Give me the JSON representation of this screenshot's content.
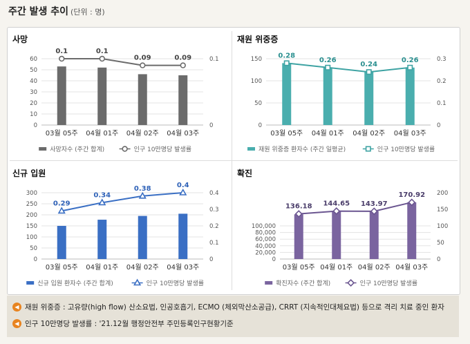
{
  "header": {
    "title": "주간 발생 추이",
    "unit": "(단위 : 명)"
  },
  "chart_data": [
    {
      "type": "bar",
      "title": "사망",
      "categories": [
        "03월 05주",
        "04월 01주",
        "04월 02주",
        "04월 03주"
      ],
      "ylim": [
        0,
        60
      ],
      "y_ticks": [
        "0",
        "10",
        "20",
        "30",
        "40",
        "50",
        "60"
      ],
      "y2lim": [
        0,
        0.1
      ],
      "y2_ticks": [
        "0",
        "0.1"
      ],
      "series": [
        {
          "name": "사망자수 (주간 합계)",
          "kind": "bar",
          "values": [
            53,
            52,
            46,
            45
          ],
          "color": "#6b6b6b"
        },
        {
          "name": "인구 10만명당 발생률",
          "kind": "line",
          "marker": "circle",
          "values": [
            0.1,
            0.1,
            0.09,
            0.09
          ],
          "labels": [
            "0.1",
            "0.1",
            "0.09",
            "0.09"
          ],
          "color": "#6b6b6b",
          "label_color": "#444444"
        }
      ]
    },
    {
      "type": "bar",
      "title": "재원 위중증",
      "categories": [
        "03월 05주",
        "04월 01주",
        "04월 02주",
        "04월 03주"
      ],
      "ylim": [
        0,
        150
      ],
      "y_ticks": [
        "0",
        "50",
        "100",
        "150"
      ],
      "y2lim": [
        0,
        0.3
      ],
      "y2_ticks": [
        "0",
        "0.1",
        "0.2",
        "0.3"
      ],
      "series": [
        {
          "name": "재원 위중증 환자수 (주간 일평균)",
          "kind": "bar",
          "values": [
            140,
            130,
            120,
            130
          ],
          "color": "#4aaeae"
        },
        {
          "name": "인구 10만명당 발생률",
          "kind": "line",
          "marker": "square",
          "values": [
            0.28,
            0.26,
            0.24,
            0.26
          ],
          "labels": [
            "0.28",
            "0.26",
            "0.24",
            "0.26"
          ],
          "color": "#3ea3a3",
          "label_color": "#2a8f8f"
        }
      ]
    },
    {
      "type": "bar",
      "title": "신규 입원",
      "categories": [
        "03월 05주",
        "04월 01주",
        "04월 02주",
        "04월 03주"
      ],
      "ylim": [
        0,
        300
      ],
      "y_ticks": [
        "0",
        "50",
        "100",
        "150",
        "200",
        "250",
        "300"
      ],
      "y2lim": [
        0,
        0.4
      ],
      "y2_ticks": [
        "0",
        "0.1",
        "0.2",
        "0.3",
        "0.4"
      ],
      "series": [
        {
          "name": "신규 입원 환자수 (주간 합계)",
          "kind": "bar",
          "values": [
            150,
            178,
            195,
            205
          ],
          "color": "#3a6fc4"
        },
        {
          "name": "인구 10만명당 발생률",
          "kind": "line",
          "marker": "triangle",
          "values": [
            0.29,
            0.34,
            0.38,
            0.4
          ],
          "labels": [
            "0.29",
            "0.34",
            "0.38",
            "0.4"
          ],
          "color": "#3a6fc4",
          "label_color": "#2f62b8"
        }
      ]
    },
    {
      "type": "bar",
      "title": "확진",
      "categories": [
        "03월 05주",
        "04월 01주",
        "04월 02주",
        "04월 03주"
      ],
      "ylim": [
        0,
        200000
      ],
      "y_ticks": [
        "0",
        "20,000",
        "40,000",
        "60,000",
        "80,000",
        "100,000"
      ],
      "y2lim": [
        0,
        200
      ],
      "y2_ticks": [
        "0",
        "50",
        "100",
        "150",
        "200"
      ],
      "series": [
        {
          "name": "확진자수 (주간 합계)",
          "kind": "bar",
          "values": [
            135000,
            144000,
            144000,
            171000
          ],
          "color": "#7a649f"
        },
        {
          "name": "인구 10만명당 발생률",
          "kind": "line",
          "marker": "diamond",
          "values": [
            136.18,
            144.65,
            143.97,
            170.92
          ],
          "labels": [
            "136.18",
            "144.65",
            "143.97",
            "170.92"
          ],
          "color": "#6a5590",
          "label_color": "#4a3d6a"
        }
      ]
    }
  ],
  "notes": [
    "재원 위중증 : 고유량(high flow) 산소요법, 인공호흡기, ECMO (체외막산소공급), CRRT (지속적인대체요법) 등으로 격리 치료 중인 환자",
    "인구 10만명당 발생률 : '21.12월 행정안전부 주민등록인구현황기준"
  ]
}
